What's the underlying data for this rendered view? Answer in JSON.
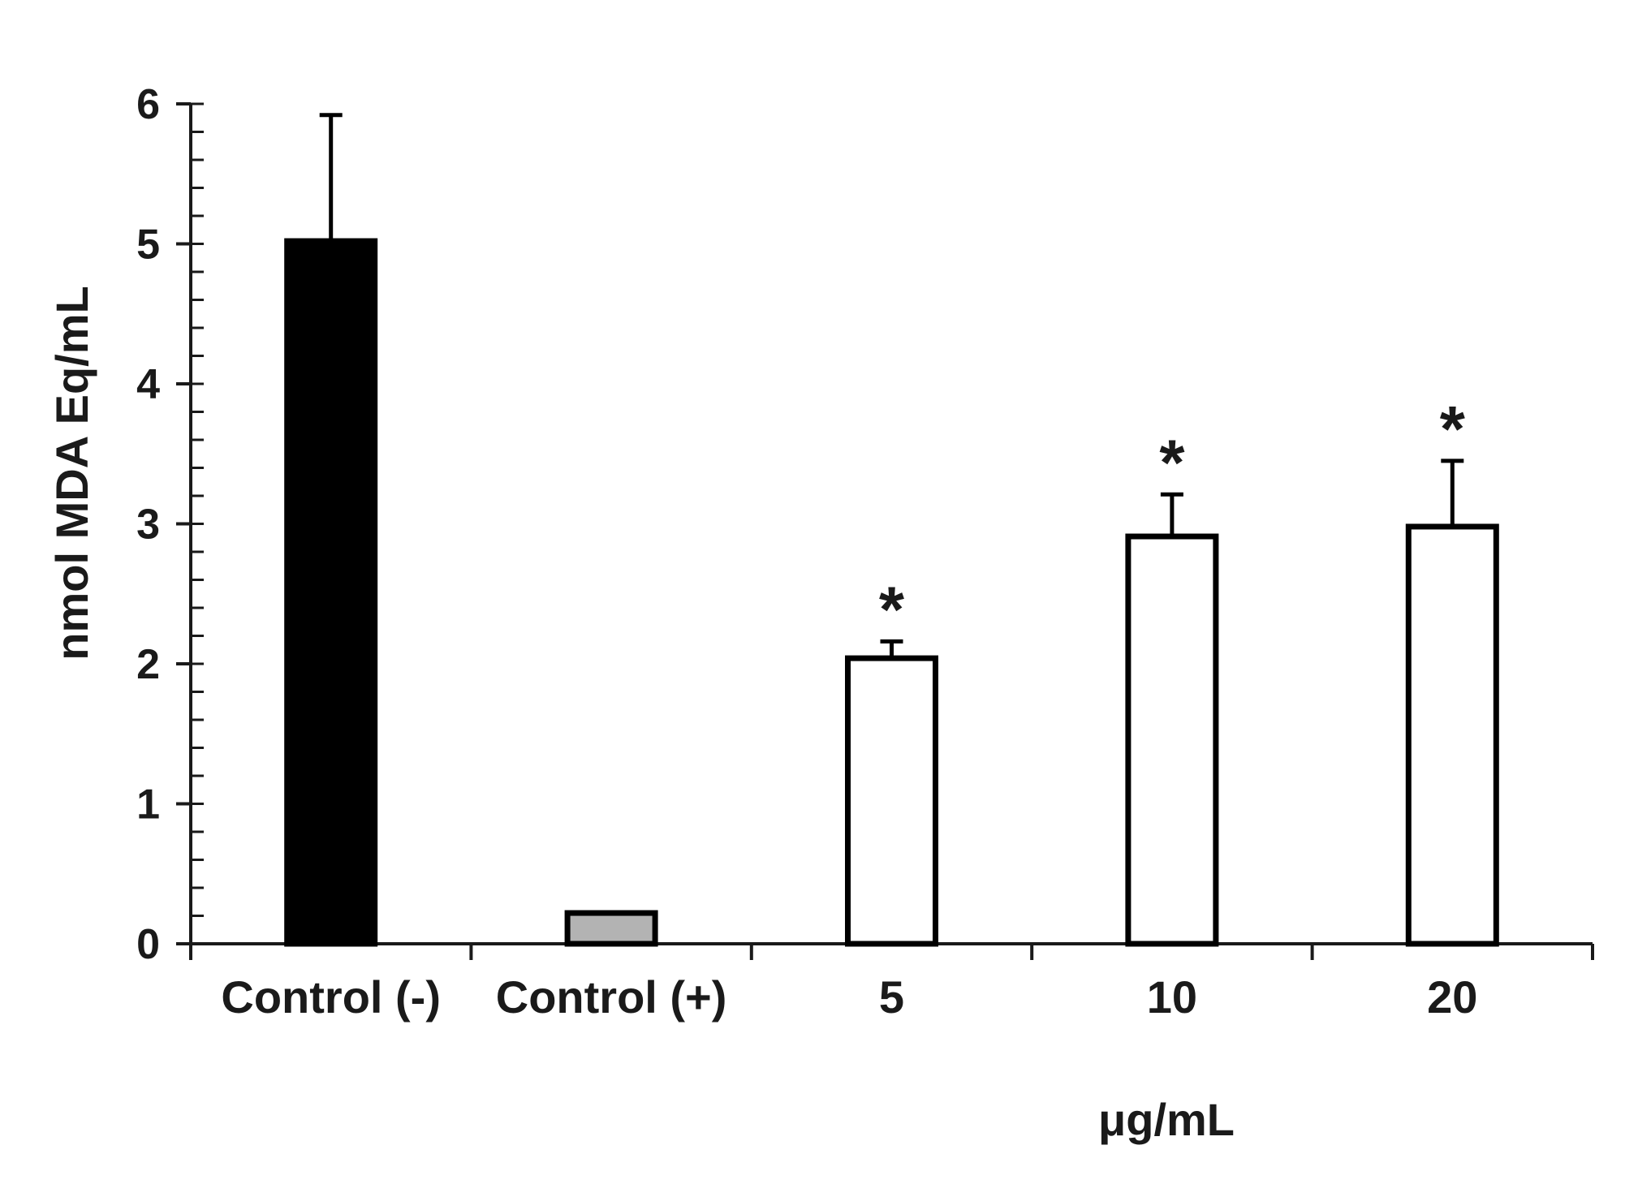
{
  "chart_data": {
    "type": "bar",
    "title": "",
    "ylabel": "nmol MDA Eq/mL",
    "xlabel": "μg/mL",
    "ylim": [
      0,
      6
    ],
    "yticks": [
      0,
      1,
      2,
      3,
      4,
      5,
      6
    ],
    "minor_tick_step": 0.2,
    "grid": false,
    "categories": [
      "Control (-)",
      "Control (+)",
      "5",
      "10",
      "20"
    ],
    "values": [
      5.02,
      0.22,
      2.04,
      2.91,
      2.98
    ],
    "errors": [
      0.9,
      0.0,
      0.12,
      0.3,
      0.47
    ],
    "bar_colors": [
      "#000000",
      "#b3b3b3",
      "#ffffff",
      "#ffffff",
      "#ffffff"
    ],
    "significance": [
      "",
      "",
      "*",
      "*",
      "*"
    ]
  }
}
